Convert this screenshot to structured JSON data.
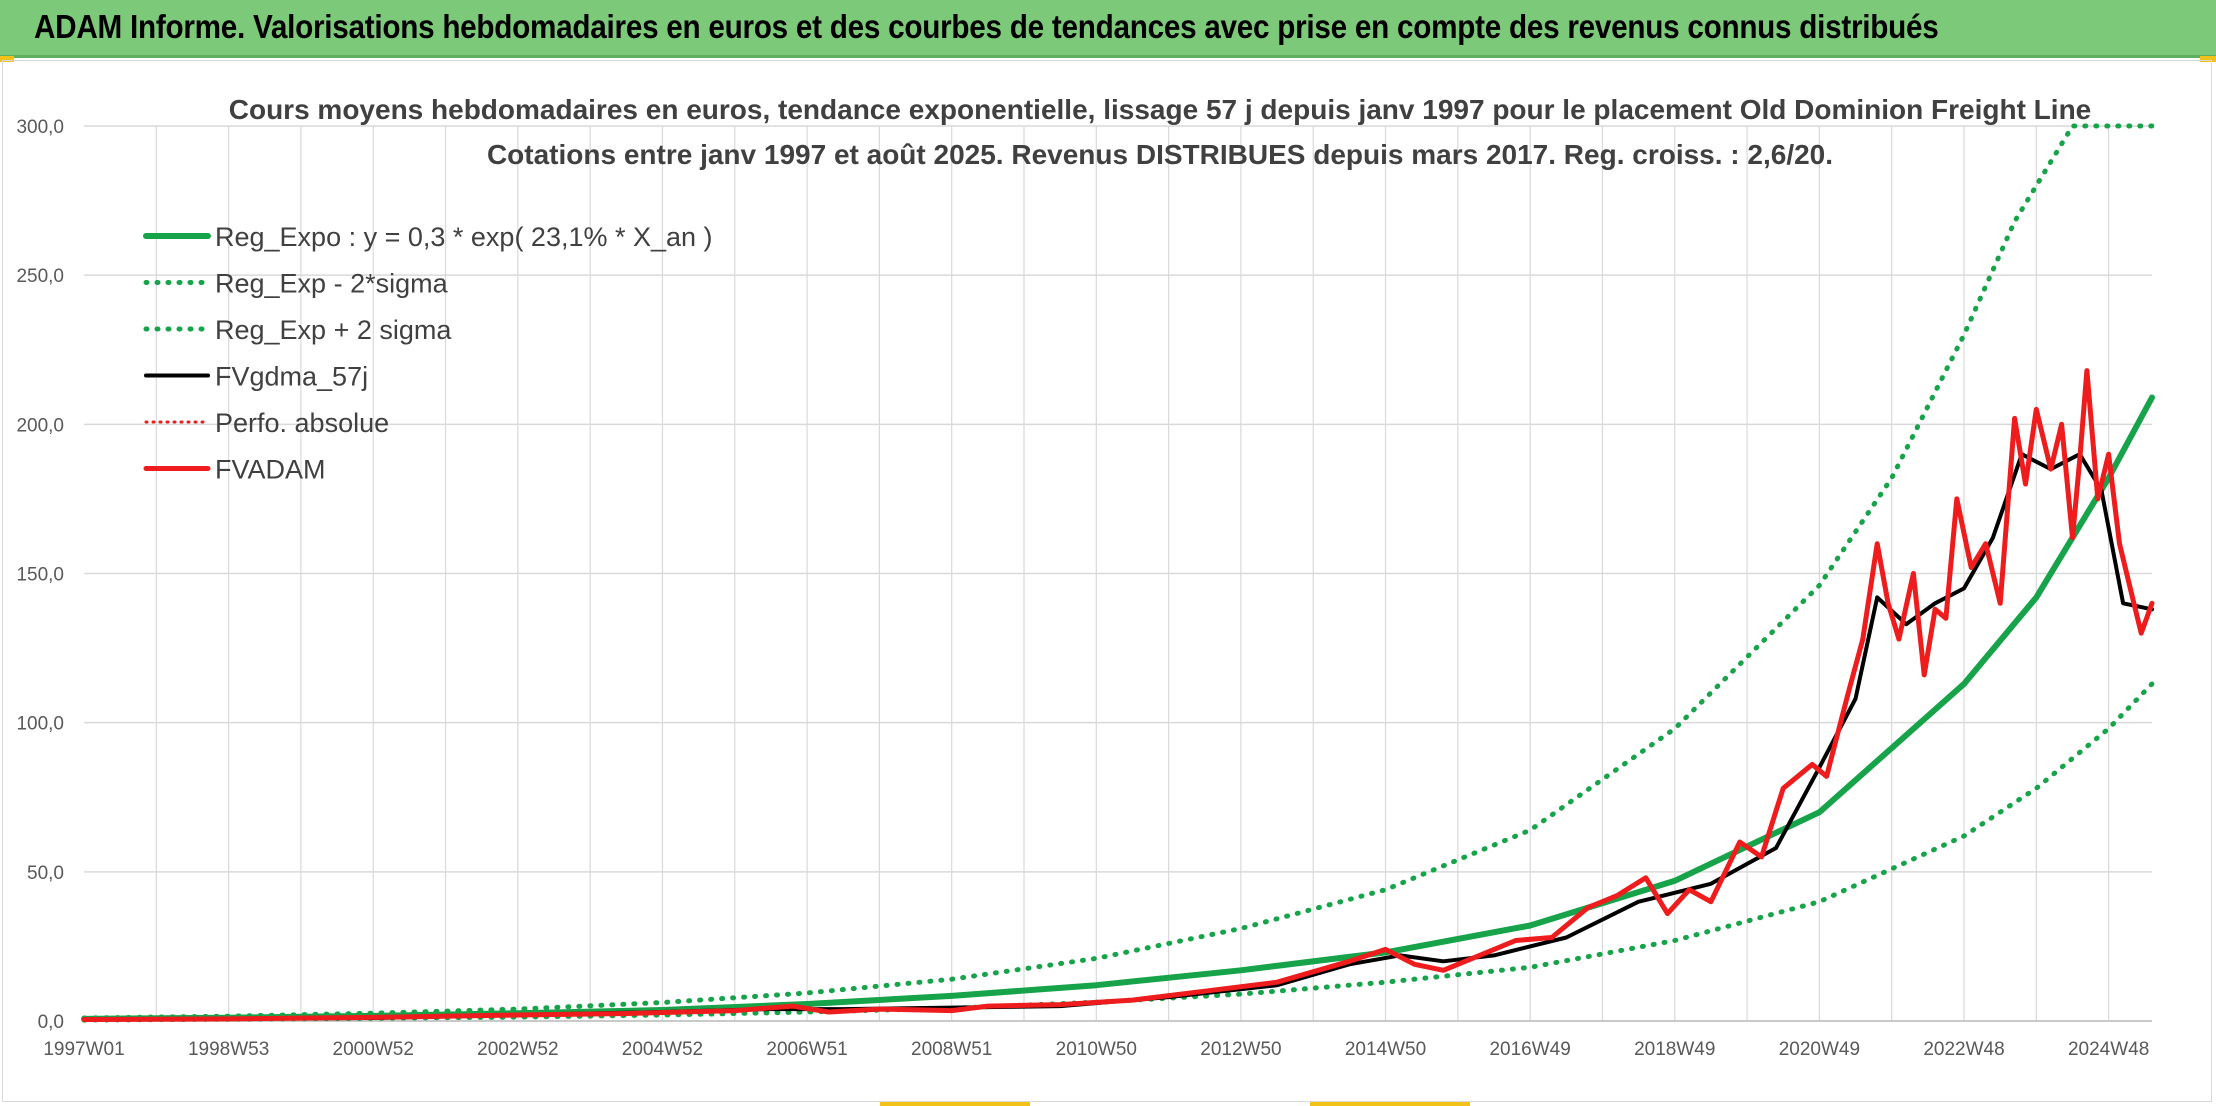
{
  "header": {
    "title": "ADAM Informe. Valorisations hebdomadaires en euros et des courbes de tendances avec prise en compte des revenus connus distribués"
  },
  "colors": {
    "banner": "#7cc97a",
    "accent": "#f2c21a",
    "trend_green": "#16a34a",
    "price_red": "#ee1c1c",
    "smooth_black": "#000000",
    "grid": "#d9d9d9"
  },
  "chart_data": {
    "type": "line",
    "title_line1": "Cours moyens hebdomadaires en euros, tendance exponentielle, lissage 57 j depuis janv 1997 pour le placement Old Dominion Freight Line",
    "title_line2": "Cotations entre janv 1997 et août 2025. Revenus DISTRIBUES depuis mars 2017. Reg. croiss. : 2,6/20.",
    "xlabel": "",
    "ylabel": "",
    "xlim": [
      1997.0,
      2025.6
    ],
    "ylim": [
      0,
      300
    ],
    "grid": true,
    "legend_position": "top-left",
    "y_ticks": [
      "0,0",
      "50,0",
      "100,0",
      "150,0",
      "200,0",
      "250,0",
      "300,0"
    ],
    "y_tick_values": [
      0,
      50,
      100,
      150,
      200,
      250,
      300
    ],
    "x_ticks": [
      "1997W01",
      "1998W53",
      "2000W52",
      "2002W52",
      "2004W52",
      "2006W51",
      "2008W51",
      "2010W50",
      "2012W50",
      "2014W50",
      "2016W49",
      "2018W49",
      "2020W49",
      "2022W48",
      "2024W48"
    ],
    "x_tick_years": [
      1997.0,
      1999.0,
      2001.0,
      2003.0,
      2005.0,
      2007.0,
      2009.0,
      2011.0,
      2013.0,
      2015.0,
      2017.0,
      2019.0,
      2021.0,
      2023.0,
      2025.0
    ],
    "series": [
      {
        "name": "Reg_Expo : y = 0,3 * exp( 23,1% *  X_an )",
        "style": "solid-green",
        "x": [
          1997,
          1999,
          2001,
          2003,
          2005,
          2007,
          2009,
          2011,
          2013,
          2015,
          2017,
          2019,
          2021,
          2023,
          2024,
          2025,
          2025.6
        ],
        "values": [
          0.7,
          1.1,
          1.7,
          2.6,
          3.7,
          5.7,
          8.4,
          12.0,
          17.0,
          23.0,
          32.0,
          47.0,
          70.0,
          113.0,
          142.0,
          182.0,
          209.0
        ]
      },
      {
        "name": "Reg_Exp - 2*sigma",
        "style": "dotted-green",
        "x": [
          1997,
          1999,
          2001,
          2003,
          2005,
          2007,
          2009,
          2011,
          2013,
          2015,
          2017,
          2019,
          2021,
          2023,
          2024,
          2025,
          2025.6
        ],
        "values": [
          0.3,
          0.6,
          0.9,
          1.3,
          2.0,
          3.0,
          4.3,
          6.3,
          9.0,
          13.0,
          18.0,
          27.0,
          40.0,
          62.0,
          78.0,
          98.0,
          113.0
        ]
      },
      {
        "name": "Reg_Exp + 2 sigma",
        "style": "dotted-green",
        "x": [
          1997,
          1999,
          2001,
          2003,
          2005,
          2007,
          2009,
          2011,
          2013,
          2015,
          2017,
          2019,
          2021,
          2022,
          2023,
          2023.7,
          2024.5,
          2025.6
        ],
        "values": [
          1.0,
          1.6,
          2.6,
          4.0,
          6.2,
          9.4,
          14.0,
          21.0,
          31.0,
          44.0,
          64.0,
          98.0,
          146.0,
          182.0,
          230.0,
          268.0,
          300.0,
          300.0
        ]
      },
      {
        "name": "FVgdma_57j",
        "style": "solid-black",
        "x": [
          1997,
          1999,
          2001,
          2003,
          2005,
          2006.5,
          2007.5,
          2009,
          2010.5,
          2012,
          2013.5,
          2014.5,
          2015.2,
          2015.8,
          2016.5,
          2017.5,
          2018.5,
          2019.5,
          2020.4,
          2021.0,
          2021.5,
          2021.8,
          2022.2,
          2022.6,
          2023.0,
          2023.4,
          2023.8,
          2024.2,
          2024.6,
          2024.9,
          2025.2,
          2025.6
        ],
        "values": [
          0.5,
          0.8,
          1.0,
          2.0,
          3.0,
          4.0,
          4.0,
          4.5,
          5.0,
          8.0,
          12.0,
          19.0,
          22.0,
          20.0,
          22.0,
          28.0,
          40.0,
          46.0,
          58.0,
          85.0,
          108.0,
          142.0,
          133.0,
          140.0,
          145.0,
          162.0,
          190.0,
          185.0,
          190.0,
          178.0,
          140.0,
          138.0
        ]
      },
      {
        "name": "Perfo. absolue",
        "style": "dotted-red",
        "x": [],
        "values": []
      },
      {
        "name": "FVADAM",
        "style": "solid-red",
        "x": [
          1997,
          1999,
          2001,
          2003,
          2004.5,
          2006,
          2006.8,
          2007.3,
          2008,
          2009,
          2009.5,
          2010.5,
          2011.5,
          2012.5,
          2013.5,
          2014.5,
          2015.0,
          2015.4,
          2015.8,
          2016.3,
          2016.8,
          2017.3,
          2017.8,
          2018.2,
          2018.6,
          2018.9,
          2019.2,
          2019.5,
          2019.9,
          2020.2,
          2020.5,
          2020.9,
          2021.1,
          2021.4,
          2021.6,
          2021.8,
          2021.95,
          2022.1,
          2022.3,
          2022.45,
          2022.6,
          2022.75,
          2022.9,
          2023.1,
          2023.3,
          2023.5,
          2023.7,
          2023.85,
          2024.0,
          2024.2,
          2024.35,
          2024.5,
          2024.6,
          2024.7,
          2024.85,
          2025.0,
          2025.15,
          2025.3,
          2025.45,
          2025.6
        ],
        "values": [
          0.5,
          0.7,
          1.2,
          2.0,
          2.5,
          3.5,
          5.0,
          3.0,
          4.0,
          3.5,
          5.0,
          5.5,
          7.0,
          10.0,
          13.0,
          20.0,
          24.0,
          19.0,
          17.0,
          22.0,
          27.0,
          28.0,
          38.0,
          42.0,
          48.0,
          36.0,
          44.0,
          40.0,
          60.0,
          55.0,
          78.0,
          86.0,
          82.0,
          110.0,
          128.0,
          160.0,
          140.0,
          128.0,
          150.0,
          116.0,
          138.0,
          135.0,
          175.0,
          152.0,
          160.0,
          140.0,
          202.0,
          180.0,
          205.0,
          185.0,
          200.0,
          162.0,
          188.0,
          218.0,
          175.0,
          190.0,
          160.0,
          145.0,
          130.0,
          140.0
        ]
      }
    ]
  }
}
